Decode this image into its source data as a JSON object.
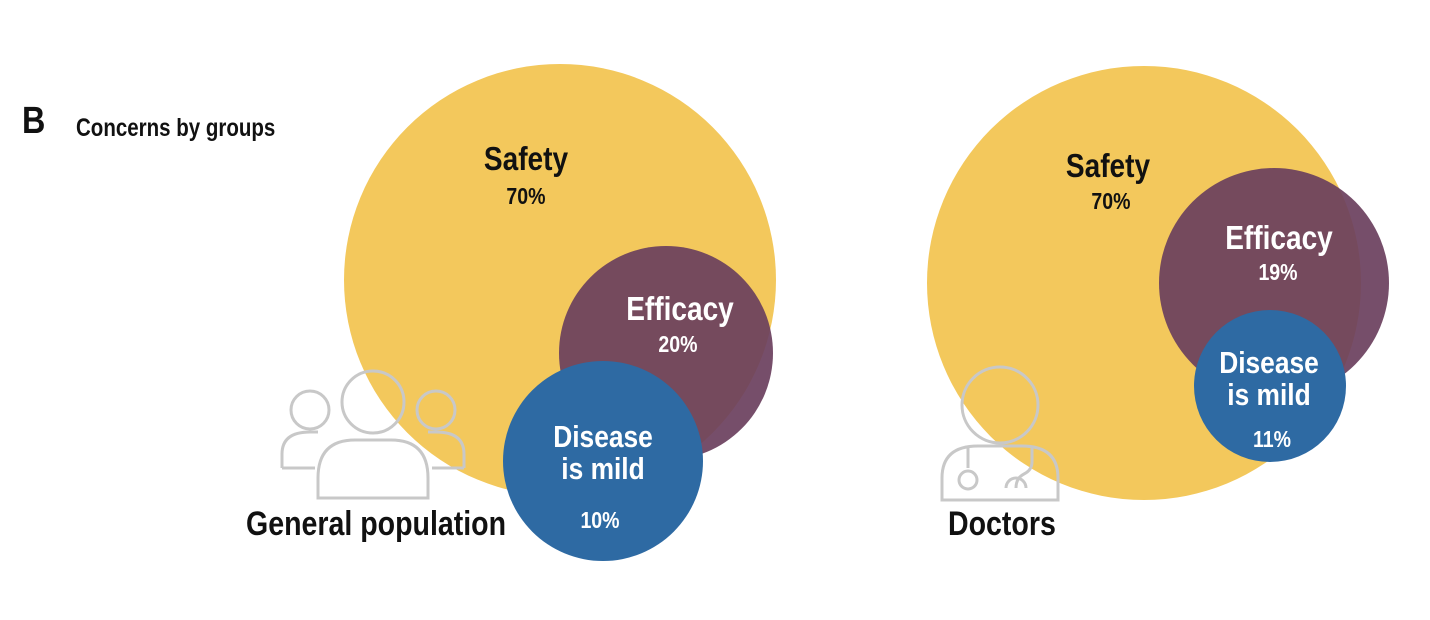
{
  "panel_label": "B",
  "title": "Concerns by groups",
  "colors": {
    "safety": "#F3C85C",
    "efficacy": "#6A3F5D",
    "disease_is_mild": "#2E6AA3",
    "icon_stroke": "#C8C8C8",
    "dark_text": "#111111",
    "light_text": "#FFFFFF"
  },
  "groups": [
    {
      "name": "General population",
      "icon": "people-group-icon",
      "concerns": [
        {
          "label": "Safety",
          "value": "70%"
        },
        {
          "label": "Efficacy",
          "value": "20%"
        },
        {
          "label_line1": "Disease",
          "label_line2": "is mild",
          "value": "10%"
        }
      ]
    },
    {
      "name": "Doctors",
      "icon": "doctor-stethoscope-icon",
      "concerns": [
        {
          "label": "Safety",
          "value": "70%"
        },
        {
          "label": "Efficacy",
          "value": "19%"
        },
        {
          "label_line1": "Disease",
          "label_line2": "is mild",
          "value": "11%"
        }
      ]
    }
  ]
}
